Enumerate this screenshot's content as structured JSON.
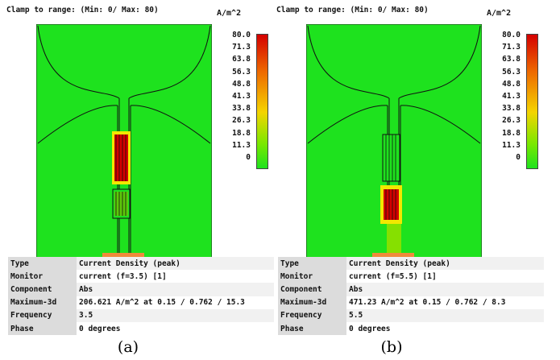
{
  "colors": {
    "field_green": "#1ee21e",
    "hot_red": "#d40000",
    "feed_orange": "#f08a3a",
    "outline": "#111111"
  },
  "colorbar_ticks": [
    "80.0",
    "71.3",
    "63.8",
    "56.3",
    "48.8",
    "41.3",
    "33.8",
    "26.3",
    "18.8",
    "11.3",
    "0"
  ],
  "panels": [
    {
      "clamp_text": "Clamp to range: (Min: 0/ Max: 80)",
      "unit": "A/m^2",
      "hot_region": "upper",
      "info": [
        {
          "key": "Type",
          "value": "Current Density (peak)"
        },
        {
          "key": "Monitor",
          "value": "current (f=3.5) [1]"
        },
        {
          "key": "Component",
          "value": "Abs"
        },
        {
          "key": "Maximum-3d",
          "value": "206.621 A/m^2 at 0.15 / 0.762 / 15.3"
        },
        {
          "key": "Frequency",
          "value": "3.5"
        },
        {
          "key": "Phase",
          "value": "0 degrees"
        }
      ],
      "caption": "(a)"
    },
    {
      "clamp_text": "Clamp to range: (Min: 0/ Max: 80)",
      "unit": "A/m^2",
      "hot_region": "lower",
      "info": [
        {
          "key": "Type",
          "value": "Current Density (peak)"
        },
        {
          "key": "Monitor",
          "value": "current (f=5.5) [1]"
        },
        {
          "key": "Component",
          "value": "Abs"
        },
        {
          "key": "Maximum-3d",
          "value": "471.23 A/m^2 at 0.15 / 0.762 / 8.3"
        },
        {
          "key": "Frequency",
          "value": "5.5"
        },
        {
          "key": "Phase",
          "value": "0 degrees"
        }
      ],
      "caption": "(b)"
    }
  ]
}
